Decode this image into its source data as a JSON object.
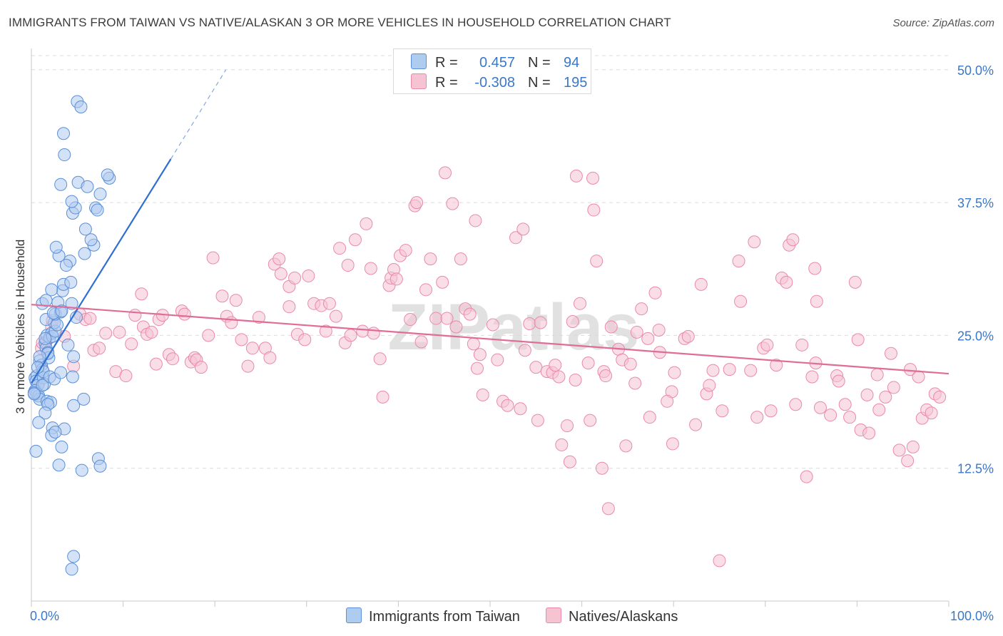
{
  "title": "IMMIGRANTS FROM TAIWAN VS NATIVE/ALASKAN 3 OR MORE VEHICLES IN HOUSEHOLD CORRELATION CHART",
  "source": "Source: ZipAtlas.com",
  "watermark": "ZIPatlas",
  "legend": {
    "series1": {
      "r_label": "R =",
      "r_value": "0.457",
      "n_label": "N =",
      "n_value": "94"
    },
    "series2": {
      "r_label": "R =",
      "r_value": "-0.308",
      "n_label": "N =",
      "n_value": "195"
    }
  },
  "colors": {
    "blue_fill": "#aecbf0",
    "blue_stroke": "#5b8fd6",
    "blue_line": "#2e6fd1",
    "pink_fill": "#f6c3d3",
    "pink_stroke": "#e98aab",
    "pink_line": "#e06c98",
    "tick_text": "#3a78c9",
    "grid": "#dcdcdc"
  },
  "chart_data": {
    "type": "scatter",
    "title": "IMMIGRANTS FROM TAIWAN VS NATIVE/ALASKAN 3 OR MORE VEHICLES IN HOUSEHOLD CORRELATION CHART",
    "xlabel": "",
    "ylabel": "3 or more Vehicles in Household",
    "xlim": [
      0,
      100
    ],
    "ylim": [
      0,
      52
    ],
    "x_tick_labels": [
      "0.0%",
      "100.0%"
    ],
    "y_ticks": [
      12.5,
      25.0,
      37.5,
      50.0
    ],
    "y_tick_labels": [
      "12.5%",
      "25.0%",
      "37.5%",
      "50.0%"
    ],
    "series": [
      {
        "name": "Immigrants from Taiwan",
        "r": 0.457,
        "n": 94,
        "trend": {
          "x": [
            0,
            15.2
          ],
          "y": [
            20.5,
            41.6
          ],
          "dashed_to": [
            21.2,
            50.0
          ]
        },
        "points": [
          [
            0.4,
            21.0
          ],
          [
            0.6,
            21.2
          ],
          [
            0.5,
            20.7
          ],
          [
            0.7,
            20.3
          ],
          [
            0.4,
            19.8
          ],
          [
            0.6,
            19.5
          ],
          [
            0.8,
            19.3
          ],
          [
            0.9,
            22.6
          ],
          [
            1.1,
            22.2
          ],
          [
            1.2,
            21.8
          ],
          [
            1.3,
            21.0
          ],
          [
            1.4,
            20.4
          ],
          [
            0.9,
            19.0
          ],
          [
            1.5,
            24.3
          ],
          [
            1.6,
            23.8
          ],
          [
            1.8,
            23.4
          ],
          [
            1.7,
            25.0
          ],
          [
            2.0,
            24.8
          ],
          [
            2.2,
            25.2
          ],
          [
            2.3,
            24.9
          ],
          [
            2.6,
            25.4
          ],
          [
            2.5,
            26.2
          ],
          [
            2.8,
            26.0
          ],
          [
            1.6,
            26.5
          ],
          [
            2.6,
            27.0
          ],
          [
            3.2,
            27.2
          ],
          [
            1.2,
            28.0
          ],
          [
            1.6,
            28.3
          ],
          [
            2.9,
            28.1
          ],
          [
            3.4,
            29.2
          ],
          [
            4.4,
            28.0
          ],
          [
            2.2,
            29.3
          ],
          [
            3.5,
            29.8
          ],
          [
            4.3,
            30.0
          ],
          [
            4.2,
            32.0
          ],
          [
            3.8,
            31.6
          ],
          [
            3.0,
            32.5
          ],
          [
            2.7,
            33.3
          ],
          [
            6.8,
            33.5
          ],
          [
            6.5,
            34.0
          ],
          [
            5.8,
            32.7
          ],
          [
            5.9,
            35.0
          ],
          [
            4.5,
            36.5
          ],
          [
            4.8,
            37.0
          ],
          [
            4.4,
            37.6
          ],
          [
            7.0,
            37.0
          ],
          [
            7.2,
            36.8
          ],
          [
            8.5,
            39.8
          ],
          [
            8.3,
            40.1
          ],
          [
            5.1,
            39.4
          ],
          [
            6.1,
            39.0
          ],
          [
            7.5,
            38.3
          ],
          [
            3.2,
            39.2
          ],
          [
            3.6,
            42.0
          ],
          [
            3.5,
            44.0
          ],
          [
            5.0,
            47.0
          ],
          [
            5.4,
            46.5
          ],
          [
            1.9,
            22.9
          ],
          [
            1.3,
            21.6
          ],
          [
            2.0,
            21.1
          ],
          [
            2.5,
            20.9
          ],
          [
            3.2,
            21.5
          ],
          [
            1.7,
            18.8
          ],
          [
            2.1,
            18.7
          ],
          [
            1.8,
            18.5
          ],
          [
            4.6,
            18.4
          ],
          [
            1.5,
            17.7
          ],
          [
            0.8,
            16.8
          ],
          [
            2.3,
            16.3
          ],
          [
            2.2,
            15.6
          ],
          [
            3.6,
            16.2
          ],
          [
            2.6,
            15.9
          ],
          [
            3.3,
            14.5
          ],
          [
            0.5,
            14.1
          ],
          [
            3.0,
            12.8
          ],
          [
            7.3,
            13.4
          ],
          [
            7.5,
            12.7
          ],
          [
            5.5,
            12.3
          ],
          [
            0.3,
            19.6
          ],
          [
            5.7,
            19.0
          ],
          [
            4.0,
            24.1
          ],
          [
            4.6,
            23.0
          ],
          [
            4.9,
            26.7
          ],
          [
            2.4,
            27.1
          ],
          [
            3.3,
            27.3
          ],
          [
            4.5,
            21.1
          ],
          [
            1.8,
            23.3
          ],
          [
            0.9,
            23.0
          ],
          [
            1.2,
            20.3
          ],
          [
            0.7,
            22.0
          ],
          [
            4.6,
            4.2
          ],
          [
            4.4,
            3.0
          ],
          [
            1.5,
            24.7
          ],
          [
            0.3,
            19.5
          ]
        ]
      },
      {
        "name": "Natives/Alaskans",
        "r": -0.308,
        "n": 195,
        "trend": {
          "x": [
            0,
            100
          ],
          "y": [
            27.9,
            21.4
          ]
        },
        "points": [
          [
            0.5,
            19.8
          ],
          [
            0.8,
            20.5
          ],
          [
            1.1,
            23.8
          ],
          [
            1.2,
            24.3
          ],
          [
            1.6,
            24.4
          ],
          [
            2.2,
            25.8
          ],
          [
            2.3,
            26.4
          ],
          [
            3.6,
            24.9
          ],
          [
            4.6,
            22.1
          ],
          [
            5.3,
            27.0
          ],
          [
            5.9,
            26.5
          ],
          [
            6.4,
            26.6
          ],
          [
            6.8,
            23.6
          ],
          [
            7.4,
            23.8
          ],
          [
            8.1,
            25.2
          ],
          [
            9.2,
            21.6
          ],
          [
            9.6,
            25.3
          ],
          [
            10.3,
            21.2
          ],
          [
            10.9,
            24.2
          ],
          [
            11.3,
            26.9
          ],
          [
            12.0,
            28.9
          ],
          [
            12.2,
            25.8
          ],
          [
            12.6,
            25.1
          ],
          [
            13.1,
            25.3
          ],
          [
            13.6,
            22.3
          ],
          [
            13.9,
            26.5
          ],
          [
            14.3,
            26.9
          ],
          [
            15.0,
            23.2
          ],
          [
            15.4,
            22.8
          ],
          [
            16.4,
            27.3
          ],
          [
            16.7,
            27.0
          ],
          [
            17.4,
            22.5
          ],
          [
            17.8,
            22.9
          ],
          [
            18.0,
            22.7
          ],
          [
            18.5,
            22.0
          ],
          [
            19.3,
            25.0
          ],
          [
            19.8,
            32.3
          ],
          [
            20.8,
            28.7
          ],
          [
            21.3,
            26.8
          ],
          [
            21.8,
            26.2
          ],
          [
            22.3,
            28.3
          ],
          [
            22.9,
            24.6
          ],
          [
            23.6,
            22.1
          ],
          [
            24.1,
            23.8
          ],
          [
            24.8,
            26.7
          ],
          [
            25.5,
            23.8
          ],
          [
            26.0,
            22.9
          ],
          [
            26.5,
            31.7
          ],
          [
            27.0,
            32.2
          ],
          [
            27.2,
            30.8
          ],
          [
            28.1,
            29.6
          ],
          [
            28.7,
            30.4
          ],
          [
            28.1,
            27.7
          ],
          [
            29.0,
            25.1
          ],
          [
            29.8,
            24.6
          ],
          [
            30.2,
            30.6
          ],
          [
            30.8,
            28.0
          ],
          [
            31.6,
            27.8
          ],
          [
            32.1,
            25.4
          ],
          [
            32.5,
            28.0
          ],
          [
            33.2,
            26.8
          ],
          [
            33.6,
            33.2
          ],
          [
            34.2,
            24.3
          ],
          [
            34.5,
            31.6
          ],
          [
            34.8,
            25.0
          ],
          [
            35.3,
            34.0
          ],
          [
            36.1,
            25.4
          ],
          [
            36.5,
            35.5
          ],
          [
            37.0,
            31.3
          ],
          [
            37.3,
            25.2
          ],
          [
            38.0,
            22.8
          ],
          [
            38.3,
            19.2
          ],
          [
            39.0,
            29.7
          ],
          [
            39.2,
            30.4
          ],
          [
            39.5,
            31.2
          ],
          [
            39.8,
            30.3
          ],
          [
            40.2,
            32.5
          ],
          [
            40.8,
            33.0
          ],
          [
            41.3,
            26.5
          ],
          [
            41.8,
            37.2
          ],
          [
            42.0,
            37.5
          ],
          [
            42.5,
            24.4
          ],
          [
            43.0,
            29.3
          ],
          [
            43.5,
            32.2
          ],
          [
            44.1,
            26.6
          ],
          [
            44.8,
            30.0
          ],
          [
            45.1,
            40.3
          ],
          [
            45.3,
            26.6
          ],
          [
            45.9,
            37.4
          ],
          [
            46.3,
            25.8
          ],
          [
            46.8,
            32.2
          ],
          [
            47.3,
            27.5
          ],
          [
            47.8,
            27.0
          ],
          [
            48.2,
            24.2
          ],
          [
            48.6,
            21.9
          ],
          [
            48.9,
            23.2
          ],
          [
            48.4,
            35.8
          ],
          [
            49.2,
            19.4
          ],
          [
            50.3,
            26.0
          ],
          [
            50.8,
            22.7
          ],
          [
            51.4,
            18.8
          ],
          [
            51.9,
            18.4
          ],
          [
            52.8,
            34.2
          ],
          [
            53.3,
            18.1
          ],
          [
            53.8,
            23.6
          ],
          [
            53.6,
            35.0
          ],
          [
            54.3,
            26.1
          ],
          [
            55.0,
            22.0
          ],
          [
            55.2,
            17.0
          ],
          [
            55.5,
            26.2
          ],
          [
            56.2,
            21.6
          ],
          [
            56.8,
            21.5
          ],
          [
            57.1,
            22.2
          ],
          [
            57.5,
            21.1
          ],
          [
            57.8,
            14.7
          ],
          [
            58.4,
            16.5
          ],
          [
            58.7,
            13.1
          ],
          [
            59.0,
            26.3
          ],
          [
            59.3,
            20.8
          ],
          [
            59.8,
            28.0
          ],
          [
            59.4,
            40.0
          ],
          [
            61.2,
            39.8
          ],
          [
            60.7,
            22.4
          ],
          [
            60.9,
            17.0
          ],
          [
            61.3,
            36.8
          ],
          [
            61.6,
            32.0
          ],
          [
            62.4,
            21.6
          ],
          [
            62.6,
            21.2
          ],
          [
            62.9,
            8.7
          ],
          [
            63.2,
            25.8
          ],
          [
            64.0,
            23.7
          ],
          [
            64.4,
            22.7
          ],
          [
            64.8,
            14.6
          ],
          [
            65.3,
            22.3
          ],
          [
            65.8,
            20.5
          ],
          [
            66.0,
            25.3
          ],
          [
            66.5,
            27.5
          ],
          [
            67.2,
            24.7
          ],
          [
            67.4,
            17.3
          ],
          [
            68.0,
            29.0
          ],
          [
            68.4,
            25.5
          ],
          [
            68.5,
            23.4
          ],
          [
            69.8,
            19.7
          ],
          [
            69.9,
            14.8
          ],
          [
            69.3,
            18.8
          ],
          [
            70.1,
            21.5
          ],
          [
            71.2,
            24.7
          ],
          [
            71.6,
            24.9
          ],
          [
            72.4,
            16.6
          ],
          [
            73.0,
            29.8
          ],
          [
            73.6,
            19.5
          ],
          [
            73.9,
            20.3
          ],
          [
            74.3,
            21.7
          ],
          [
            75.3,
            17.9
          ],
          [
            76.1,
            21.8
          ],
          [
            77.1,
            32.0
          ],
          [
            77.3,
            28.2
          ],
          [
            78.4,
            21.7
          ],
          [
            78.8,
            33.8
          ],
          [
            79.1,
            17.3
          ],
          [
            79.8,
            23.8
          ],
          [
            80.2,
            24.1
          ],
          [
            80.6,
            17.9
          ],
          [
            81.2,
            22.2
          ],
          [
            81.8,
            30.4
          ],
          [
            82.3,
            30.0
          ],
          [
            82.6,
            33.5
          ],
          [
            83.0,
            34.0
          ],
          [
            83.3,
            18.5
          ],
          [
            84.0,
            24.1
          ],
          [
            85.4,
            31.3
          ],
          [
            85.6,
            28.2
          ],
          [
            85.1,
            21.1
          ],
          [
            85.5,
            22.4
          ],
          [
            86.0,
            18.2
          ],
          [
            87.1,
            17.5
          ],
          [
            87.8,
            21.2
          ],
          [
            88.0,
            20.7
          ],
          [
            88.7,
            18.5
          ],
          [
            89.2,
            17.3
          ],
          [
            89.8,
            30.0
          ],
          [
            90.1,
            24.6
          ],
          [
            90.4,
            16.1
          ],
          [
            91.1,
            19.4
          ],
          [
            91.3,
            15.8
          ],
          [
            92.2,
            21.3
          ],
          [
            92.4,
            18.0
          ],
          [
            93.1,
            19.2
          ],
          [
            93.7,
            23.3
          ],
          [
            94.0,
            20.1
          ],
          [
            94.6,
            14.2
          ],
          [
            95.5,
            13.2
          ],
          [
            95.8,
            21.8
          ],
          [
            96.7,
            21.1
          ],
          [
            97.1,
            17.2
          ],
          [
            97.6,
            18.0
          ],
          [
            98.1,
            17.7
          ],
          [
            98.5,
            19.5
          ],
          [
            96.1,
            14.5
          ],
          [
            62.2,
            12.5
          ],
          [
            75.0,
            3.8
          ],
          [
            84.5,
            11.7
          ],
          [
            99.0,
            19.2
          ]
        ]
      }
    ]
  },
  "bottom_legend": {
    "series1_label": "Immigrants from Taiwan",
    "series2_label": "Natives/Alaskans"
  }
}
